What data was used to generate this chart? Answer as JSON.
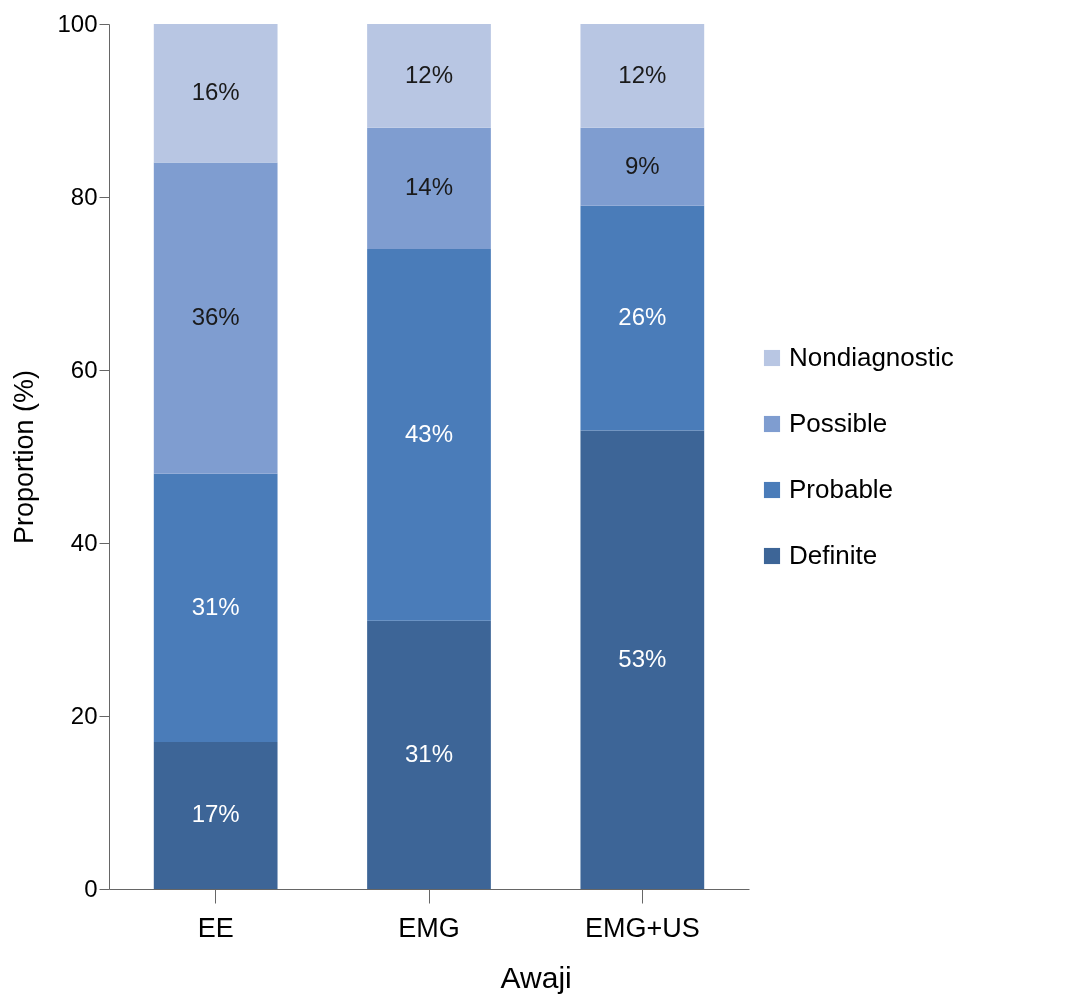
{
  "chart_data": {
    "type": "bar",
    "stacked": true,
    "ylabel": "Proportion (%)",
    "xlabel": "Awaji",
    "categories": [
      "EE",
      "EMG",
      "EMG+US"
    ],
    "series": [
      {
        "name": "Definite",
        "color": "#3d6597",
        "values": [
          17,
          31,
          53
        ],
        "value_labels": [
          "17%",
          "31%",
          "53%"
        ]
      },
      {
        "name": "Probable",
        "color": "#4a7cb9",
        "values": [
          31,
          43,
          26
        ],
        "value_labels": [
          "31%",
          "43%",
          "26%"
        ]
      },
      {
        "name": "Possible",
        "color": "#7f9dd0",
        "values": [
          36,
          14,
          9
        ],
        "value_labels": [
          "36%",
          "14%",
          "9%"
        ]
      },
      {
        "name": "Nondiagnostic",
        "color": "#b8c6e3",
        "values": [
          16,
          12,
          12
        ],
        "value_labels": [
          "16%",
          "12%",
          "12%"
        ]
      }
    ],
    "ylim": [
      0,
      100
    ],
    "yticks": [
      0,
      20,
      40,
      60,
      80,
      100
    ],
    "grid": false,
    "legend": "right"
  }
}
